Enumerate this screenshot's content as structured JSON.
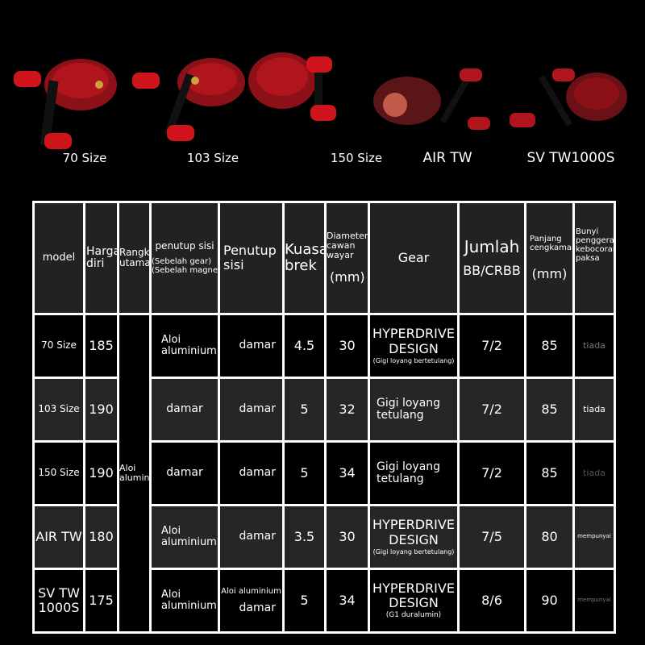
{
  "reels": [
    {
      "label": "70 Size"
    },
    {
      "label": "103 Size"
    },
    {
      "label": "150 Size"
    },
    {
      "label": "AIR TW"
    },
    {
      "label": "SV TW1000S"
    }
  ],
  "colors": {
    "background": "#000000",
    "reel_red": "#b0141c",
    "grid": "#ffffff",
    "row_alt": "#262626"
  },
  "table": {
    "headers": {
      "model": "model",
      "harga_diri": "Harga diri",
      "rangka_utama": "Rangka utama",
      "penutup_sisi_gear": "penutup sisi",
      "penutup_sisi_gear_sub1": "(Sebelah gear)",
      "penutup_sisi_gear_sub2": "(Sebelah magnet)",
      "penutup_sisi": "Penutup sisi",
      "kuasa_brek": "Kuasa brek",
      "diameter": "Diameter cawan wayar",
      "diameter_unit": "(mm)",
      "gear": "Gear",
      "jumlah": "Jumlah",
      "jumlah_sub": "BB/CRBB",
      "panjang": "Panjang cengkaman",
      "panjang_unit": "(mm)",
      "bunyi": "Bunyi penggera kebocoran paksa"
    },
    "rangka_utama_value": "Aloi aluminium",
    "rows": [
      {
        "model": "70 Size",
        "harga": "185",
        "penutup_gear": "Aloi aluminium",
        "penutup_sisi_top": "",
        "penutup_sisi": "damar",
        "kuasa": "4.5",
        "diameter": "30",
        "gear": "HYPERDRIVE DESIGN",
        "gear_sub": "(Gigi loyang bertetulang)",
        "jumlah": "7/2",
        "panjang": "85",
        "bunyi": "tiada"
      },
      {
        "model": "103 Size",
        "harga": "190",
        "penutup_gear": "damar",
        "penutup_sisi_top": "",
        "penutup_sisi": "damar",
        "kuasa": "5",
        "diameter": "32",
        "gear": "Gigi loyang tetulang",
        "gear_sub": "",
        "jumlah": "7/2",
        "panjang": "85",
        "bunyi": "tiada"
      },
      {
        "model": "150 Size",
        "harga": "190",
        "penutup_gear": "damar",
        "penutup_sisi_top": "",
        "penutup_sisi": "damar",
        "kuasa": "5",
        "diameter": "34",
        "gear": "Gigi loyang tetulang",
        "gear_sub": "",
        "jumlah": "7/2",
        "panjang": "85",
        "bunyi": "tiada"
      },
      {
        "model": "AIR TW",
        "harga": "180",
        "penutup_gear": "Aloi aluminium",
        "penutup_sisi_top": "",
        "penutup_sisi": "damar",
        "kuasa": "3.5",
        "diameter": "30",
        "gear": "HYPERDRIVE DESIGN",
        "gear_sub": "(Gigi loyang bertetulang)",
        "jumlah": "7/5",
        "panjang": "80",
        "bunyi": "mempunyai"
      },
      {
        "model": "SV TW 1000S",
        "harga": "175",
        "penutup_gear": "Aloi aluminium",
        "penutup_sisi_top": "Aloi aluminium",
        "penutup_sisi": "damar",
        "kuasa": "5",
        "diameter": "34",
        "gear": "HYPERDRIVE DESIGN",
        "gear_sub": "(G1 duralumin)",
        "jumlah": "8/6",
        "panjang": "90",
        "bunyi": "mempunyai"
      }
    ]
  }
}
